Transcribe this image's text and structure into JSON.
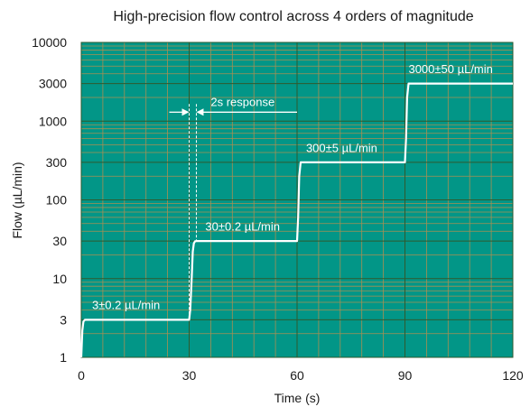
{
  "chart_data": {
    "type": "line",
    "title": "High-precision flow control across 4 orders of magnitude",
    "xlabel": "Time (s)",
    "ylabel": "Flow (µL/min)",
    "xlim": [
      0,
      120
    ],
    "ylim": [
      1,
      10000
    ],
    "yscale": "log",
    "grid": true,
    "x_ticks": [
      {
        "value": 0,
        "label": "0"
      },
      {
        "value": 30,
        "label": "30"
      },
      {
        "value": 60,
        "label": "60"
      },
      {
        "value": 90,
        "label": "90"
      },
      {
        "value": 120,
        "label": "120"
      }
    ],
    "y_ticks": [
      {
        "value": 1,
        "label": "1"
      },
      {
        "value": 3,
        "label": "3"
      },
      {
        "value": 10,
        "label": "10"
      },
      {
        "value": 30,
        "label": "30"
      },
      {
        "value": 100,
        "label": "100"
      },
      {
        "value": 300,
        "label": "300"
      },
      {
        "value": 1000,
        "label": "1000"
      },
      {
        "value": 3000,
        "label": "3000"
      },
      {
        "value": 10000,
        "label": "10000"
      }
    ],
    "series": [
      {
        "x": [
          0,
          0.3,
          0.6,
          1,
          30,
          30.3,
          30.7,
          31,
          31.3,
          31.6,
          32,
          60,
          60.3,
          60.6,
          61,
          90,
          90.3,
          90.6,
          91,
          120
        ],
        "y": [
          1,
          2.2,
          2.85,
          3,
          3,
          4,
          10,
          22,
          28,
          29.7,
          30,
          30,
          60,
          200,
          300,
          300,
          600,
          2000,
          3000,
          3000
        ]
      }
    ],
    "annotations": [
      {
        "text": "3±0.2  µL/min",
        "x": 3,
        "y": 4.1
      },
      {
        "text": "30±0.2 µL/min",
        "x": 34.5,
        "y": 41
      },
      {
        "text": "300±5  µL/min",
        "x": 62.5,
        "y": 405
      },
      {
        "text": "3000±50  µL/min",
        "x": 91,
        "y": 4050
      },
      {
        "text": "2s response",
        "x": 36,
        "y": 1560
      }
    ],
    "response_markers": {
      "x_start": 30,
      "x_end": 32,
      "y_arrow": 1300
    },
    "colors": {
      "plot_background": "#029687",
      "major_grid": "#2f5a2f",
      "minor_grid": "#a88f52",
      "line": "#ffffff",
      "annotation_text": "#ffffff"
    }
  }
}
